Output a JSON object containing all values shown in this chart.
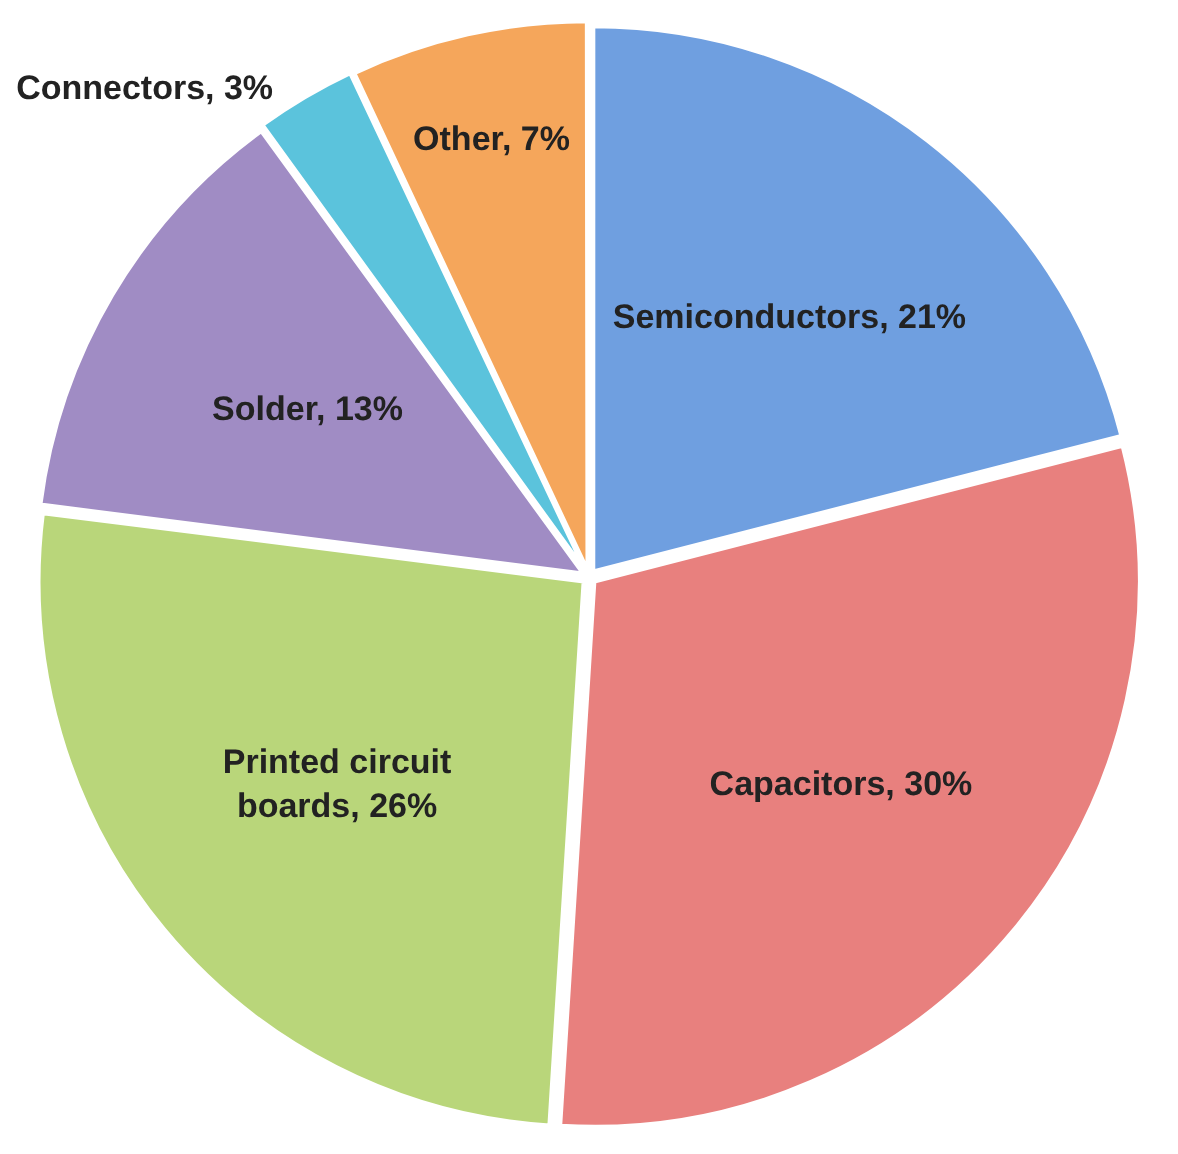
{
  "chart_data": {
    "type": "pie",
    "categories": [
      "Semiconductors",
      "Capacitors",
      "Printed circuit boards",
      "Solder",
      "Connectors",
      "Other"
    ],
    "values": [
      21,
      30,
      26,
      13,
      3,
      7
    ],
    "colors": [
      "#6f9fe0",
      "#e8807e",
      "#b9d67a",
      "#a08cc4",
      "#5bc3dc",
      "#f5a65b"
    ],
    "value_labels": [
      "21%",
      "30%",
      "26%",
      "13%",
      "3%",
      "7%"
    ],
    "legend": false
  }
}
